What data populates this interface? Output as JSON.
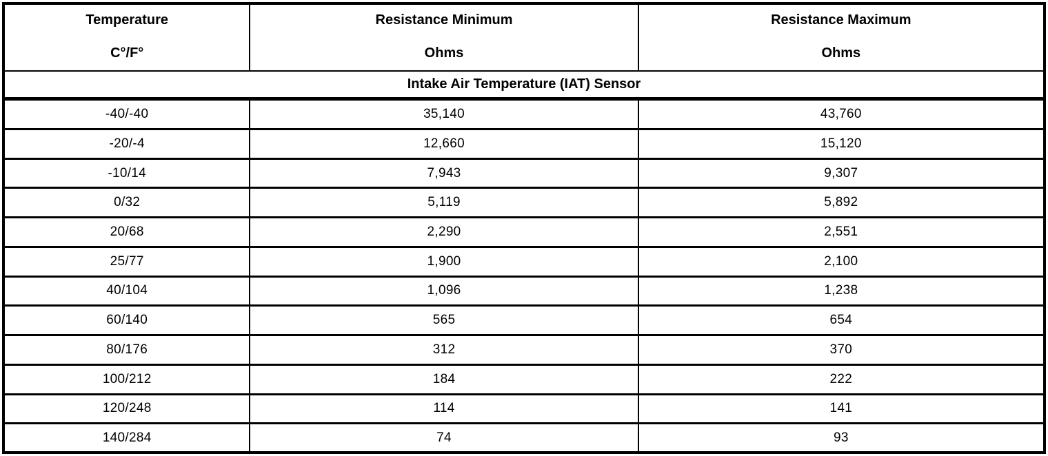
{
  "table": {
    "columns": [
      {
        "title": "Temperature",
        "unit": "C°/F°"
      },
      {
        "title": "Resistance Minimum",
        "unit": "Ohms"
      },
      {
        "title": "Resistance Maximum",
        "unit": "Ohms"
      }
    ],
    "section_title": "Intake Air Temperature (IAT) Sensor",
    "rows": [
      {
        "temperature": "-40/-40",
        "resistance_min": "35,140",
        "resistance_max": "43,760"
      },
      {
        "temperature": "-20/-4",
        "resistance_min": "12,660",
        "resistance_max": "15,120"
      },
      {
        "temperature": "-10/14",
        "resistance_min": "7,943",
        "resistance_max": "9,307"
      },
      {
        "temperature": "0/32",
        "resistance_min": "5,119",
        "resistance_max": "5,892"
      },
      {
        "temperature": "20/68",
        "resistance_min": "2,290",
        "resistance_max": "2,551"
      },
      {
        "temperature": "25/77",
        "resistance_min": "1,900",
        "resistance_max": "2,100"
      },
      {
        "temperature": "40/104",
        "resistance_min": "1,096",
        "resistance_max": "1,238"
      },
      {
        "temperature": "60/140",
        "resistance_min": "565",
        "resistance_max": "654"
      },
      {
        "temperature": "80/176",
        "resistance_min": "312",
        "resistance_max": "370"
      },
      {
        "temperature": "100/212",
        "resistance_min": "184",
        "resistance_max": "222"
      },
      {
        "temperature": "120/248",
        "resistance_min": "114",
        "resistance_max": "141"
      },
      {
        "temperature": "140/284",
        "resistance_min": "74",
        "resistance_max": "93"
      }
    ],
    "colors": {
      "border": "#000000",
      "background": "#ffffff",
      "text": "#000000"
    }
  }
}
